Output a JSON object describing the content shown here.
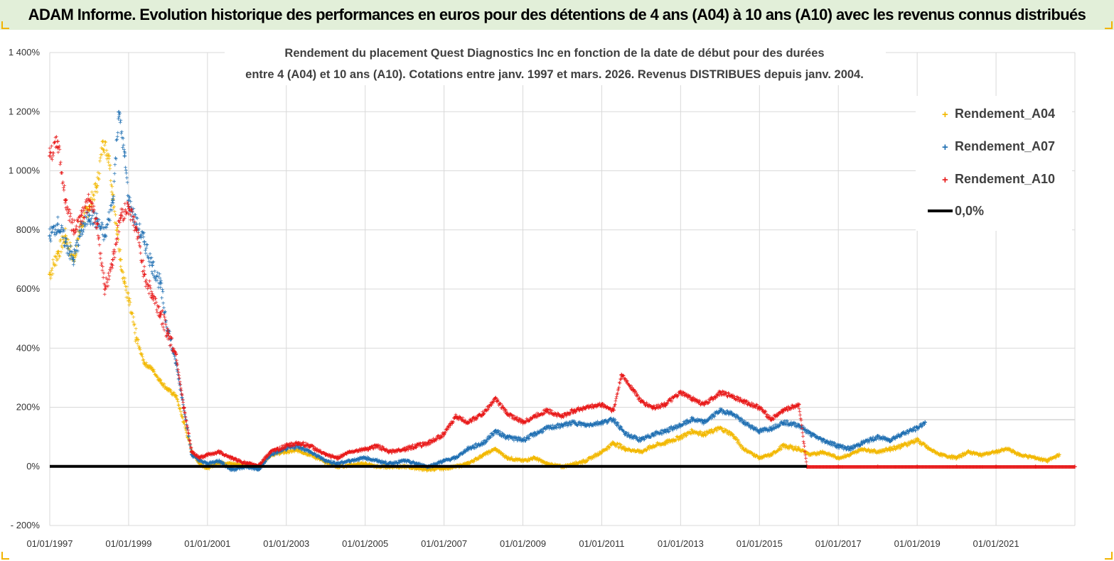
{
  "header": {
    "title": "ADAM Informe. Evolution historique des performances en euros pour des détentions de 4 ans (A04) à 10 ans (A10) avec les revenus connus distribués"
  },
  "colors": {
    "a04": "#f2b800",
    "a07": "#1f6fb2",
    "a10": "#e81818",
    "zero": "#000000",
    "grid": "#d9d9d9",
    "band": "#e2efd9"
  },
  "chart_data": {
    "type": "scatter",
    "title_lines": [
      "Rendement du placement Quest Diagnostics Inc en fonction de la date de début pour des durées",
      "entre 4 (A04) et 10 ans (A10).  Cotations entre janv. 1997 et mars. 2026. Revenus DISTRIBUES depuis janv. 2004."
    ],
    "xlabel": "",
    "ylabel": "",
    "xlim": [
      1997.0,
      2023.0
    ],
    "ylim": [
      -200,
      1400
    ],
    "y_ticks": [
      1400,
      1200,
      1000,
      800,
      600,
      400,
      200,
      0,
      -200
    ],
    "y_tick_labels": [
      "1 400%",
      "1 200%",
      "1 000%",
      "800%",
      "600%",
      "400%",
      "200%",
      "0%",
      "- 200%"
    ],
    "x_ticks": [
      1997,
      1999,
      2001,
      2003,
      2005,
      2007,
      2009,
      2011,
      2013,
      2015,
      2017,
      2019,
      2021
    ],
    "x_tick_labels": [
      "01/01/1997",
      "01/01/1999",
      "01/01/2001",
      "01/01/2003",
      "01/01/2005",
      "01/01/2007",
      "01/01/2009",
      "01/01/2011",
      "01/01/2013",
      "01/01/2015",
      "01/01/2017",
      "01/01/2019",
      "01/01/2021"
    ],
    "legend_position": "top-right",
    "series": [
      {
        "name": "Rendement_A04",
        "marker": "+",
        "color_key": "a04",
        "points": [
          [
            1997.0,
            650
          ],
          [
            1997.2,
            720
          ],
          [
            1997.4,
            780
          ],
          [
            1997.6,
            700
          ],
          [
            1997.8,
            820
          ],
          [
            1998.0,
            880
          ],
          [
            1998.2,
            950
          ],
          [
            1998.35,
            1100
          ],
          [
            1998.5,
            1050
          ],
          [
            1998.6,
            920
          ],
          [
            1998.7,
            800
          ],
          [
            1998.8,
            700
          ],
          [
            1998.9,
            620
          ],
          [
            1999.0,
            560
          ],
          [
            1999.2,
            430
          ],
          [
            1999.4,
            350
          ],
          [
            1999.6,
            330
          ],
          [
            1999.8,
            290
          ],
          [
            2000.0,
            260
          ],
          [
            2000.2,
            240
          ],
          [
            2000.4,
            150
          ],
          [
            2000.6,
            50
          ],
          [
            2000.8,
            10
          ],
          [
            2001.0,
            -5
          ],
          [
            2001.3,
            15
          ],
          [
            2001.6,
            10
          ],
          [
            2002.0,
            5
          ],
          [
            2002.3,
            0
          ],
          [
            2002.6,
            40
          ],
          [
            2003.0,
            50
          ],
          [
            2003.3,
            55
          ],
          [
            2003.6,
            40
          ],
          [
            2004.0,
            15
          ],
          [
            2004.3,
            0
          ],
          [
            2004.6,
            5
          ],
          [
            2005.0,
            10
          ],
          [
            2005.3,
            0
          ],
          [
            2005.6,
            0
          ],
          [
            2006.0,
            0
          ],
          [
            2006.3,
            -5
          ],
          [
            2006.6,
            -10
          ],
          [
            2007.0,
            -5
          ],
          [
            2007.3,
            0
          ],
          [
            2007.6,
            10
          ],
          [
            2008.0,
            40
          ],
          [
            2008.3,
            60
          ],
          [
            2008.6,
            30
          ],
          [
            2009.0,
            20
          ],
          [
            2009.3,
            30
          ],
          [
            2009.6,
            10
          ],
          [
            2010.0,
            0
          ],
          [
            2010.3,
            10
          ],
          [
            2010.6,
            20
          ],
          [
            2011.0,
            50
          ],
          [
            2011.3,
            80
          ],
          [
            2011.6,
            60
          ],
          [
            2012.0,
            50
          ],
          [
            2012.3,
            70
          ],
          [
            2012.6,
            80
          ],
          [
            2013.0,
            100
          ],
          [
            2013.3,
            120
          ],
          [
            2013.6,
            110
          ],
          [
            2014.0,
            130
          ],
          [
            2014.3,
            110
          ],
          [
            2014.6,
            60
          ],
          [
            2015.0,
            30
          ],
          [
            2015.3,
            40
          ],
          [
            2015.6,
            70
          ],
          [
            2016.0,
            60
          ],
          [
            2016.3,
            40
          ],
          [
            2016.6,
            50
          ],
          [
            2017.0,
            30
          ],
          [
            2017.3,
            40
          ],
          [
            2017.6,
            60
          ],
          [
            2018.0,
            50
          ],
          [
            2018.3,
            60
          ],
          [
            2018.6,
            70
          ],
          [
            2019.0,
            90
          ],
          [
            2019.3,
            60
          ],
          [
            2019.6,
            40
          ],
          [
            2020.0,
            30
          ],
          [
            2020.3,
            50
          ],
          [
            2020.6,
            40
          ],
          [
            2021.0,
            50
          ],
          [
            2021.3,
            60
          ],
          [
            2021.6,
            40
          ],
          [
            2022.0,
            30
          ],
          [
            2022.3,
            20
          ],
          [
            2022.6,
            40
          ]
        ]
      },
      {
        "name": "Rendement_A07",
        "marker": "+",
        "color_key": "a07",
        "points": [
          [
            1997.0,
            780
          ],
          [
            1997.2,
            820
          ],
          [
            1997.4,
            760
          ],
          [
            1997.6,
            700
          ],
          [
            1997.8,
            800
          ],
          [
            1998.0,
            850
          ],
          [
            1998.2,
            830
          ],
          [
            1998.4,
            780
          ],
          [
            1998.6,
            900
          ],
          [
            1998.75,
            1200
          ],
          [
            1998.9,
            1050
          ],
          [
            1999.0,
            900
          ],
          [
            1999.2,
            820
          ],
          [
            1999.4,
            760
          ],
          [
            1999.6,
            680
          ],
          [
            1999.8,
            620
          ],
          [
            2000.0,
            460
          ],
          [
            2000.2,
            350
          ],
          [
            2000.4,
            200
          ],
          [
            2000.6,
            40
          ],
          [
            2000.8,
            20
          ],
          [
            2001.0,
            10
          ],
          [
            2001.3,
            20
          ],
          [
            2001.6,
            -10
          ],
          [
            2002.0,
            0
          ],
          [
            2002.3,
            -10
          ],
          [
            2002.6,
            40
          ],
          [
            2003.0,
            60
          ],
          [
            2003.3,
            70
          ],
          [
            2003.6,
            50
          ],
          [
            2004.0,
            20
          ],
          [
            2004.3,
            10
          ],
          [
            2004.6,
            20
          ],
          [
            2005.0,
            30
          ],
          [
            2005.3,
            20
          ],
          [
            2005.6,
            10
          ],
          [
            2006.0,
            20
          ],
          [
            2006.3,
            10
          ],
          [
            2006.6,
            0
          ],
          [
            2007.0,
            20
          ],
          [
            2007.3,
            30
          ],
          [
            2007.6,
            60
          ],
          [
            2008.0,
            80
          ],
          [
            2008.3,
            120
          ],
          [
            2008.6,
            100
          ],
          [
            2009.0,
            90
          ],
          [
            2009.3,
            110
          ],
          [
            2009.6,
            130
          ],
          [
            2010.0,
            140
          ],
          [
            2010.3,
            150
          ],
          [
            2010.6,
            140
          ],
          [
            2011.0,
            150
          ],
          [
            2011.3,
            160
          ],
          [
            2011.6,
            110
          ],
          [
            2012.0,
            90
          ],
          [
            2012.3,
            110
          ],
          [
            2012.6,
            120
          ],
          [
            2013.0,
            140
          ],
          [
            2013.3,
            160
          ],
          [
            2013.6,
            150
          ],
          [
            2014.0,
            190
          ],
          [
            2014.3,
            180
          ],
          [
            2014.6,
            150
          ],
          [
            2015.0,
            120
          ],
          [
            2015.3,
            130
          ],
          [
            2015.6,
            150
          ],
          [
            2016.0,
            140
          ],
          [
            2016.3,
            110
          ],
          [
            2016.6,
            90
          ],
          [
            2017.0,
            70
          ],
          [
            2017.3,
            60
          ],
          [
            2017.6,
            80
          ],
          [
            2018.0,
            100
          ],
          [
            2018.3,
            90
          ],
          [
            2018.6,
            110
          ],
          [
            2019.0,
            130
          ],
          [
            2019.2,
            150
          ]
        ]
      },
      {
        "name": "Rendement_A10",
        "marker": "+",
        "color_key": "a10",
        "points": [
          [
            1997.0,
            1050
          ],
          [
            1997.2,
            1100
          ],
          [
            1997.4,
            900
          ],
          [
            1997.6,
            800
          ],
          [
            1997.8,
            850
          ],
          [
            1998.0,
            900
          ],
          [
            1998.2,
            820
          ],
          [
            1998.4,
            600
          ],
          [
            1998.6,
            700
          ],
          [
            1998.8,
            850
          ],
          [
            1999.0,
            880
          ],
          [
            1999.2,
            800
          ],
          [
            1999.4,
            650
          ],
          [
            1999.6,
            580
          ],
          [
            1999.8,
            520
          ],
          [
            2000.0,
            450
          ],
          [
            2000.2,
            380
          ],
          [
            2000.4,
            200
          ],
          [
            2000.6,
            50
          ],
          [
            2000.8,
            30
          ],
          [
            2001.0,
            40
          ],
          [
            2001.3,
            50
          ],
          [
            2001.6,
            30
          ],
          [
            2002.0,
            10
          ],
          [
            2002.3,
            5
          ],
          [
            2002.6,
            50
          ],
          [
            2003.0,
            70
          ],
          [
            2003.3,
            80
          ],
          [
            2003.6,
            70
          ],
          [
            2004.0,
            40
          ],
          [
            2004.3,
            30
          ],
          [
            2004.6,
            50
          ],
          [
            2005.0,
            60
          ],
          [
            2005.3,
            70
          ],
          [
            2005.6,
            50
          ],
          [
            2006.0,
            60
          ],
          [
            2006.3,
            70
          ],
          [
            2006.6,
            80
          ],
          [
            2007.0,
            110
          ],
          [
            2007.3,
            170
          ],
          [
            2007.6,
            150
          ],
          [
            2008.0,
            180
          ],
          [
            2008.3,
            230
          ],
          [
            2008.6,
            180
          ],
          [
            2009.0,
            150
          ],
          [
            2009.3,
            170
          ],
          [
            2009.6,
            190
          ],
          [
            2010.0,
            170
          ],
          [
            2010.3,
            190
          ],
          [
            2010.6,
            200
          ],
          [
            2011.0,
            210
          ],
          [
            2011.3,
            190
          ],
          [
            2011.5,
            310
          ],
          [
            2011.8,
            260
          ],
          [
            2012.0,
            220
          ],
          [
            2012.3,
            200
          ],
          [
            2012.6,
            210
          ],
          [
            2013.0,
            250
          ],
          [
            2013.3,
            230
          ],
          [
            2013.6,
            210
          ],
          [
            2014.0,
            250
          ],
          [
            2014.3,
            240
          ],
          [
            2014.6,
            220
          ],
          [
            2015.0,
            200
          ],
          [
            2015.3,
            160
          ],
          [
            2015.6,
            190
          ],
          [
            2016.0,
            210
          ],
          [
            2016.2,
            0
          ],
          [
            2017.0,
            0
          ],
          [
            2018.0,
            0
          ],
          [
            2019.0,
            0
          ],
          [
            2020.0,
            0
          ],
          [
            2021.0,
            0
          ],
          [
            2022.0,
            0
          ],
          [
            2023.0,
            0
          ]
        ]
      },
      {
        "name": "0,0%",
        "marker": "line",
        "color_key": "zero",
        "points": [
          [
            1997.0,
            0
          ],
          [
            2016.2,
            0
          ]
        ]
      }
    ]
  }
}
